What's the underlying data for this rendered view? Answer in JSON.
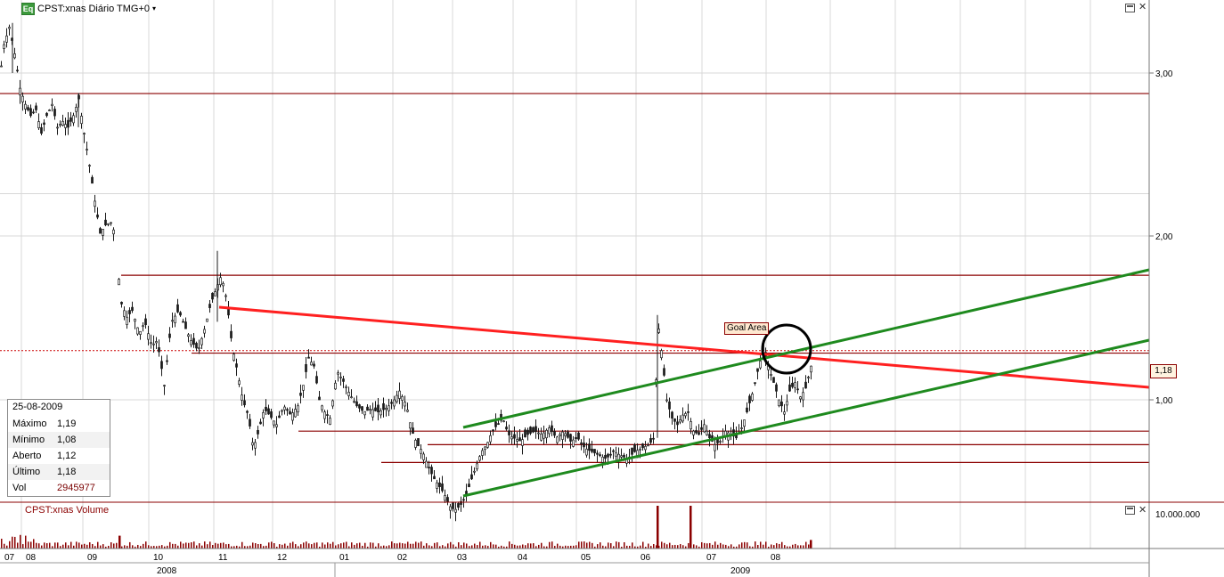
{
  "window": {
    "title": "CPST:xnas Diário TMG+0",
    "dropdown_icon": "chevron-down-icon",
    "badge": "Eq",
    "volume_title": "CPST:xnas Volume"
  },
  "infobox": {
    "date": "25-08-2009",
    "rows": [
      {
        "label": "Máximo",
        "value": "1,19"
      },
      {
        "label": "Mínimo",
        "value": "1,08"
      },
      {
        "label": "Aberto",
        "value": "1,12"
      },
      {
        "label": "Último",
        "value": "1,18"
      },
      {
        "label": "Vol",
        "value": "2945977"
      }
    ]
  },
  "annotations": {
    "goal_label": "Goal Area",
    "last_price_tag": "1,18"
  },
  "colors": {
    "candle": "#1a1a1a",
    "horizontal_levels": "#8b0000",
    "resistance_line": "#ff2020",
    "channel_lines": "#1e8a1e",
    "grid": "#d8d8d8",
    "volume_bars": "#8b0000"
  },
  "chart_data": {
    "type": "candlestick",
    "scale": "log",
    "y_ticks": [
      "3,00",
      "2,00",
      "1,00"
    ],
    "y_tick_values": [
      3.0,
      2.0,
      1.0
    ],
    "volume_tick": "10.000.000",
    "x_month_labels": [
      "07",
      "08",
      "09",
      "10",
      "11",
      "12",
      "01",
      "02",
      "03",
      "04",
      "05",
      "06",
      "07",
      "08"
    ],
    "x_year_labels": [
      "2008",
      "2009"
    ],
    "last_close": 1.18,
    "last_ohlc": {
      "open": 1.12,
      "high": 1.19,
      "low": 1.08,
      "close": 1.18,
      "volume": 2945977
    },
    "horizontal_levels": [
      2.8,
      1.52,
      1.17,
      0.9,
      0.86,
      0.81
    ],
    "resistance_line": {
      "start": [
        "2008-10-31",
        1.56
      ],
      "end": [
        "2010-02",
        1.08
      ]
    },
    "channel_upper": {
      "start": [
        "2009-02-20",
        0.9
      ],
      "end": [
        "2010-02",
        1.78
      ]
    },
    "channel_lower": {
      "start": [
        "2009-02-20",
        0.69
      ],
      "end": [
        "2010-02",
        1.37
      ]
    },
    "path": [
      [
        0,
        3.0
      ],
      [
        4,
        3.3
      ],
      [
        10,
        3.5
      ],
      [
        16,
        3.2
      ],
      [
        22,
        2.85
      ],
      [
        28,
        2.7
      ],
      [
        34,
        2.6
      ],
      [
        40,
        2.65
      ],
      [
        46,
        2.45
      ],
      [
        52,
        2.6
      ],
      [
        58,
        2.7
      ],
      [
        64,
        2.5
      ],
      [
        70,
        2.55
      ],
      [
        76,
        2.5
      ],
      [
        82,
        2.6
      ],
      [
        88,
        2.75
      ],
      [
        94,
        2.45
      ],
      [
        100,
        2.2
      ],
      [
        106,
        1.95
      ],
      [
        112,
        1.75
      ],
      [
        118,
        1.8
      ],
      [
        126,
        1.82
      ],
      [
        136,
        1.38
      ],
      [
        142,
        1.32
      ],
      [
        148,
        1.35
      ],
      [
        156,
        1.25
      ],
      [
        162,
        1.3
      ],
      [
        170,
        1.2
      ],
      [
        176,
        1.22
      ],
      [
        184,
        1.05
      ],
      [
        192,
        1.3
      ],
      [
        200,
        1.35
      ],
      [
        208,
        1.27
      ],
      [
        214,
        1.22
      ],
      [
        222,
        1.18
      ],
      [
        230,
        1.28
      ],
      [
        236,
        1.38
      ],
      [
        242,
        1.45
      ],
      [
        248,
        1.52
      ],
      [
        254,
        1.4
      ],
      [
        260,
        1.2
      ],
      [
        266,
        1.1
      ],
      [
        272,
        1.0
      ],
      [
        278,
        0.95
      ],
      [
        284,
        0.85
      ],
      [
        290,
        0.9
      ],
      [
        296,
        0.97
      ],
      [
        302,
        0.95
      ],
      [
        310,
        0.92
      ],
      [
        318,
        0.98
      ],
      [
        326,
        0.95
      ],
      [
        334,
        0.98
      ],
      [
        340,
        1.05
      ],
      [
        346,
        1.15
      ],
      [
        352,
        1.12
      ],
      [
        358,
        1.0
      ],
      [
        364,
        0.96
      ],
      [
        370,
        0.94
      ],
      [
        378,
        1.1
      ],
      [
        384,
        1.07
      ],
      [
        392,
        1.02
      ],
      [
        400,
        0.98
      ],
      [
        408,
        0.96
      ],
      [
        416,
        0.97
      ],
      [
        424,
        0.96
      ],
      [
        432,
        0.97
      ],
      [
        440,
        0.99
      ],
      [
        448,
        1.03
      ],
      [
        456,
        0.98
      ],
      [
        462,
        0.9
      ],
      [
        468,
        0.86
      ],
      [
        474,
        0.84
      ],
      [
        480,
        0.8
      ],
      [
        486,
        0.77
      ],
      [
        492,
        0.75
      ],
      [
        498,
        0.73
      ],
      [
        504,
        0.7
      ],
      [
        510,
        0.69
      ],
      [
        516,
        0.7
      ],
      [
        522,
        0.72
      ],
      [
        528,
        0.76
      ],
      [
        534,
        0.8
      ],
      [
        540,
        0.84
      ],
      [
        546,
        0.86
      ],
      [
        552,
        0.9
      ],
      [
        558,
        0.92
      ],
      [
        564,
        0.94
      ],
      [
        570,
        0.89
      ],
      [
        576,
        0.88
      ],
      [
        584,
        0.87
      ],
      [
        592,
        0.89
      ],
      [
        600,
        0.9
      ],
      [
        608,
        0.89
      ],
      [
        616,
        0.91
      ],
      [
        624,
        0.88
      ],
      [
        632,
        0.9
      ],
      [
        640,
        0.87
      ],
      [
        648,
        0.88
      ],
      [
        656,
        0.85
      ],
      [
        664,
        0.84
      ],
      [
        672,
        0.83
      ],
      [
        680,
        0.82
      ],
      [
        688,
        0.84
      ],
      [
        696,
        0.83
      ],
      [
        704,
        0.82
      ],
      [
        712,
        0.84
      ],
      [
        720,
        0.85
      ],
      [
        728,
        0.86
      ],
      [
        734,
        0.88
      ],
      [
        738,
        1.3
      ],
      [
        742,
        1.18
      ],
      [
        748,
        1.0
      ],
      [
        754,
        0.94
      ],
      [
        760,
        0.92
      ],
      [
        766,
        0.95
      ],
      [
        772,
        0.96
      ],
      [
        778,
        0.9
      ],
      [
        784,
        0.89
      ],
      [
        790,
        0.92
      ],
      [
        796,
        0.88
      ],
      [
        802,
        0.86
      ],
      [
        808,
        0.87
      ],
      [
        814,
        0.9
      ],
      [
        820,
        0.89
      ],
      [
        826,
        0.88
      ],
      [
        832,
        0.91
      ],
      [
        838,
        0.96
      ],
      [
        844,
        1.02
      ],
      [
        850,
        1.1
      ],
      [
        856,
        1.18
      ],
      [
        862,
        1.12
      ],
      [
        868,
        1.06
      ],
      [
        874,
        1.0
      ],
      [
        880,
        0.96
      ],
      [
        886,
        1.03
      ],
      [
        892,
        1.06
      ],
      [
        898,
        1.01
      ],
      [
        904,
        1.04
      ],
      [
        910,
        1.12
      ],
      [
        912,
        1.18
      ]
    ],
    "volume_spikes": {
      "x": [
        134,
        738,
        775,
        910
      ],
      "values": [
        0.3,
        1.0,
        1.0,
        0.2
      ]
    }
  }
}
